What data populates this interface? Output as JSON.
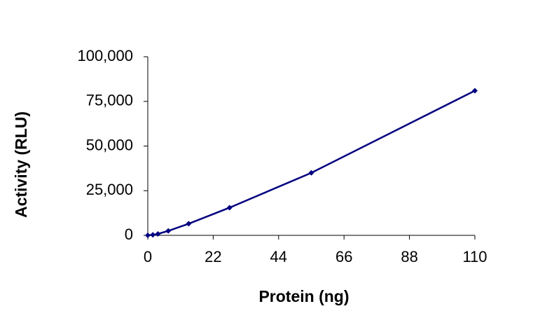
{
  "chart_data": {
    "type": "line",
    "x_label": "Protein (ng)",
    "y_label": "Activity (RLU)",
    "x": [
      0,
      1.7,
      3.4,
      6.9,
      13.75,
      27.5,
      55,
      110
    ],
    "series": [
      {
        "name": "Activity",
        "color": "#000080",
        "values": [
          0,
          300,
          800,
          2500,
          6500,
          15500,
          35000,
          81000
        ]
      }
    ],
    "xlim": [
      0,
      110
    ],
    "xticks": [
      0,
      22,
      44,
      66,
      88,
      110
    ],
    "ylim": [
      0,
      100000
    ],
    "yticks": [
      0,
      {
        "value": 25000,
        "label": "25,000"
      },
      {
        "value": 50000,
        "label": "50,000"
      },
      {
        "value": 75000,
        "label": "75,000"
      },
      {
        "value": 100000,
        "label": "100,000"
      }
    ],
    "grid": false
  }
}
